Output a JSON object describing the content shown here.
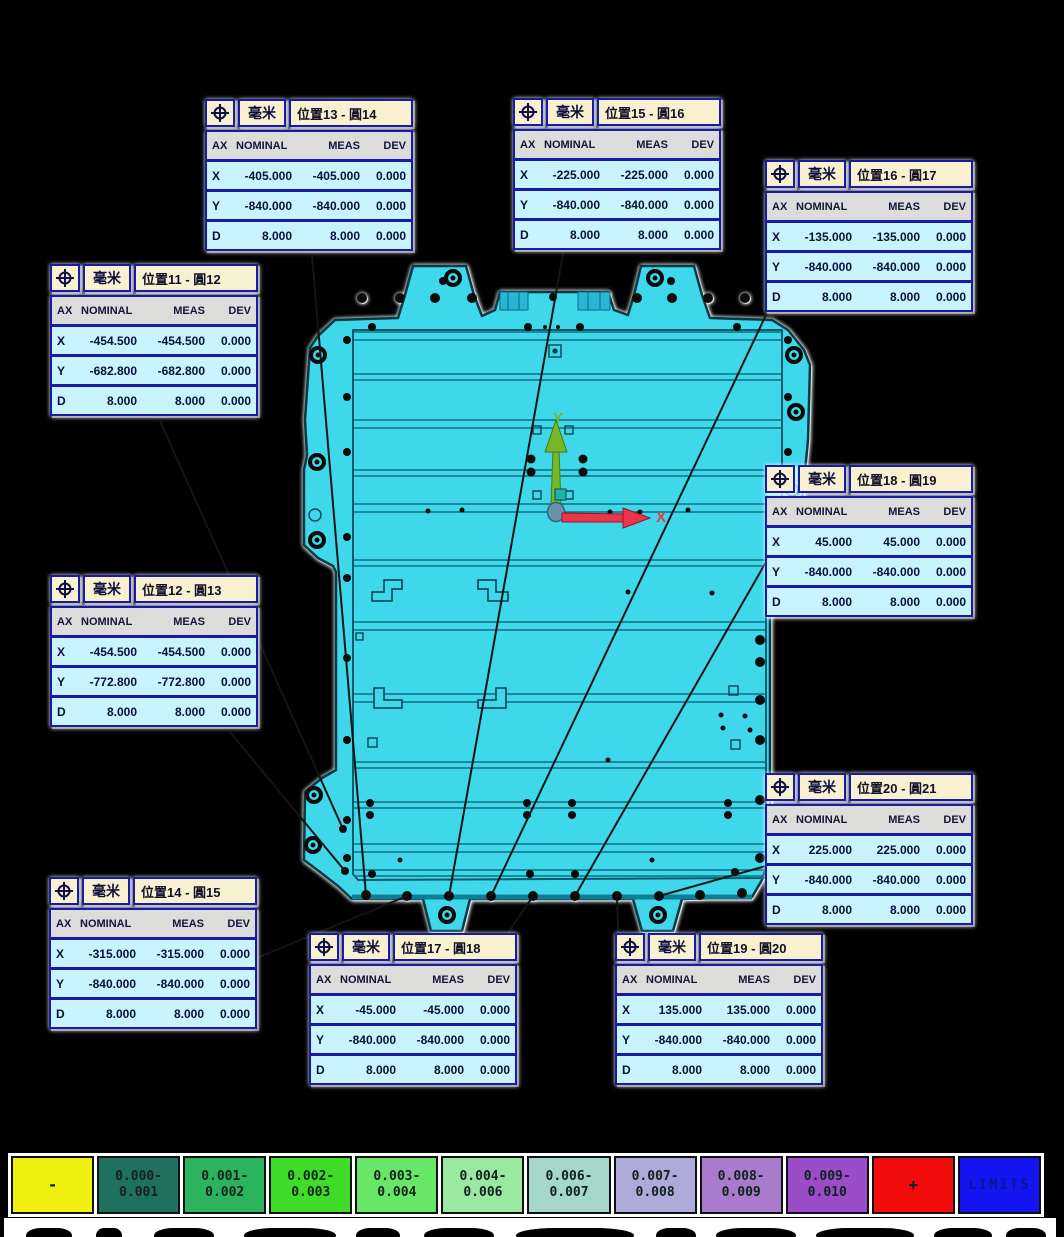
{
  "report": {
    "unit_label": "毫米",
    "columns": [
      "AX",
      "NOMINAL",
      "MEAS",
      "DEV"
    ],
    "dimension_icon": "position-crosshair-icon"
  },
  "callouts": [
    {
      "title": "位置13 - 圓14",
      "rows": [
        [
          "X",
          "-405.000",
          "-405.000",
          "0.000"
        ],
        [
          "Y",
          "-840.000",
          "-840.000",
          "0.000"
        ],
        [
          "D",
          "8.000",
          "8.000",
          "0.000"
        ]
      ]
    },
    {
      "title": "位置15 - 圓16",
      "rows": [
        [
          "X",
          "-225.000",
          "-225.000",
          "0.000"
        ],
        [
          "Y",
          "-840.000",
          "-840.000",
          "0.000"
        ],
        [
          "D",
          "8.000",
          "8.000",
          "0.000"
        ]
      ]
    },
    {
      "title": "位置16 - 圓17",
      "rows": [
        [
          "X",
          "-135.000",
          "-135.000",
          "0.000"
        ],
        [
          "Y",
          "-840.000",
          "-840.000",
          "0.000"
        ],
        [
          "D",
          "8.000",
          "8.000",
          "0.000"
        ]
      ]
    },
    {
      "title": "位置11 - 圓12",
      "rows": [
        [
          "X",
          "-454.500",
          "-454.500",
          "0.000"
        ],
        [
          "Y",
          "-682.800",
          "-682.800",
          "0.000"
        ],
        [
          "D",
          "8.000",
          "8.000",
          "0.000"
        ]
      ]
    },
    {
      "title": "位置12 - 圓13",
      "rows": [
        [
          "X",
          "-454.500",
          "-454.500",
          "0.000"
        ],
        [
          "Y",
          "-772.800",
          "-772.800",
          "0.000"
        ],
        [
          "D",
          "8.000",
          "8.000",
          "0.000"
        ]
      ]
    },
    {
      "title": "位置18 - 圓19",
      "rows": [
        [
          "X",
          "45.000",
          "45.000",
          "0.000"
        ],
        [
          "Y",
          "-840.000",
          "-840.000",
          "0.000"
        ],
        [
          "D",
          "8.000",
          "8.000",
          "0.000"
        ]
      ]
    },
    {
      "title": "位置20 - 圓21",
      "rows": [
        [
          "X",
          "225.000",
          "225.000",
          "0.000"
        ],
        [
          "Y",
          "-840.000",
          "-840.000",
          "0.000"
        ],
        [
          "D",
          "8.000",
          "8.000",
          "0.000"
        ]
      ]
    },
    {
      "title": "位置14 - 圓15",
      "rows": [
        [
          "X",
          "-315.000",
          "-315.000",
          "0.000"
        ],
        [
          "Y",
          "-840.000",
          "-840.000",
          "0.000"
        ],
        [
          "D",
          "8.000",
          "8.000",
          "0.000"
        ]
      ]
    },
    {
      "title": "位置17 - 圓18",
      "rows": [
        [
          "X",
          "-45.000",
          "-45.000",
          "0.000"
        ],
        [
          "Y",
          "-840.000",
          "-840.000",
          "0.000"
        ],
        [
          "D",
          "8.000",
          "8.000",
          "0.000"
        ]
      ]
    },
    {
      "title": "位置19 - 圓20",
      "rows": [
        [
          "X",
          "135.000",
          "135.000",
          "0.000"
        ],
        [
          "Y",
          "-840.000",
          "-840.000",
          "0.000"
        ],
        [
          "D",
          "8.000",
          "8.000",
          "0.000"
        ]
      ]
    }
  ],
  "axes": {
    "x_label": "X",
    "y_label": "Y"
  },
  "legend": {
    "items": [
      {
        "line1": "-",
        "line2": "",
        "fill": "#f0ef12",
        "style": "single"
      },
      {
        "line1": "0.000-",
        "line2": "0.001",
        "fill": "#20705f",
        "style": "range"
      },
      {
        "line1": "0.001-",
        "line2": "0.002",
        "fill": "#2cb35e",
        "style": "range"
      },
      {
        "line1": "0.002-",
        "line2": "0.003",
        "fill": "#3fdd2a",
        "style": "range"
      },
      {
        "line1": "0.003-",
        "line2": "0.004",
        "fill": "#67e667",
        "style": "range"
      },
      {
        "line1": "0.004-",
        "line2": "0.006",
        "fill": "#9ae8a2",
        "style": "range"
      },
      {
        "line1": "0.006-",
        "line2": "0.007",
        "fill": "#a5d7cb",
        "style": "range"
      },
      {
        "line1": "0.007-",
        "line2": "0.008",
        "fill": "#aeaad9",
        "style": "range"
      },
      {
        "line1": "0.008-",
        "line2": "0.009",
        "fill": "#a87bcd",
        "style": "range"
      },
      {
        "line1": "0.009-",
        "line2": "0.010",
        "fill": "#9b4cc8",
        "style": "range"
      },
      {
        "line1": "+",
        "line2": "",
        "fill": "#f20d0d",
        "style": "single"
      },
      {
        "line1": "LIMITS",
        "line2": "",
        "fill": "#1414f0",
        "style": "limits",
        "text_color": "#001a99"
      }
    ]
  },
  "colors": {
    "background": "#000000",
    "part_fill": "#3fd7ea",
    "part_outline": "#063a46",
    "table_border": "#1a1aa8",
    "table_header_bg": "#f8f1cf",
    "table_colhead_bg": "#dcdcda",
    "table_row_bg": "#c9f3fd",
    "x_axis_arrow": "#e8374a",
    "y_axis_arrow": "#76b82a"
  }
}
